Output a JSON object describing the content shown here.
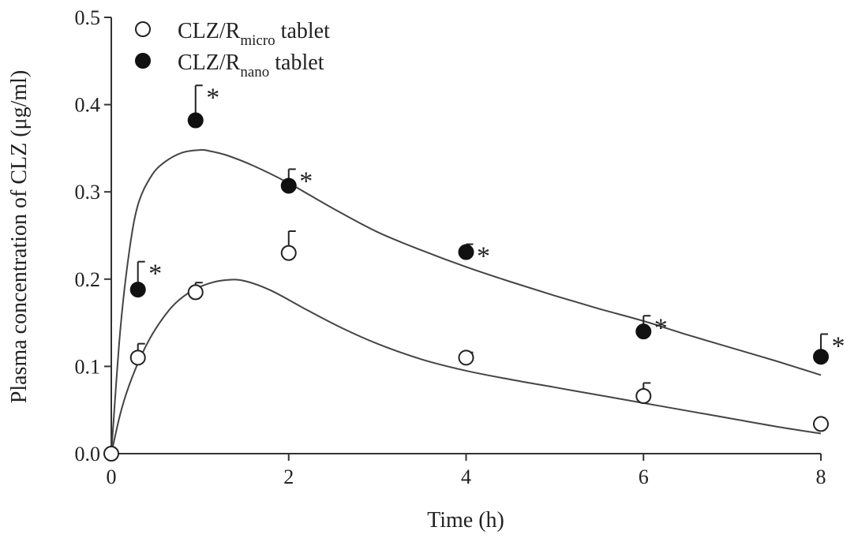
{
  "chart_data": {
    "type": "scatter",
    "xlabel": "Time (h)",
    "ylabel": "Plasma concentration of CLZ (μg/ml)",
    "xlim": [
      0,
      8
    ],
    "ylim": [
      0,
      0.5
    ],
    "x_ticks": [
      "0",
      "2",
      "4",
      "6",
      "8"
    ],
    "y_ticks": [
      "0.0",
      "0.1",
      "0.2",
      "0.3",
      "0.4",
      "0.5"
    ],
    "grid": false,
    "legend_position": "top-left",
    "annotation_symbol": "*",
    "series": [
      {
        "name": "CLZ/Rmicro tablet",
        "name_main": "CLZ/R",
        "name_sub": "micro",
        "name_suffix": " tablet",
        "marker": "open-circle",
        "color": "#222222",
        "x": [
          0,
          0.3,
          0.95,
          2,
          4,
          6,
          8
        ],
        "y": [
          0,
          0.11,
          0.185,
          0.23,
          0.11,
          0.066,
          0.034
        ],
        "err": [
          0,
          0.016,
          0.011,
          0.025,
          0.006,
          0.015,
          0.003
        ],
        "significant": [
          false,
          false,
          false,
          false,
          false,
          false,
          false
        ],
        "fit": {
          "x": [
            0,
            0.1,
            0.2,
            0.35,
            0.5,
            0.7,
            0.9,
            1.1,
            1.3,
            1.5,
            1.8,
            2.2,
            2.6,
            3.0,
            3.5,
            4.0,
            4.5,
            5.0,
            5.5,
            6.0,
            6.5,
            7.0,
            7.5,
            8.0
          ],
          "y": [
            0,
            0.045,
            0.078,
            0.115,
            0.143,
            0.17,
            0.186,
            0.195,
            0.199,
            0.198,
            0.187,
            0.165,
            0.144,
            0.126,
            0.108,
            0.095,
            0.085,
            0.076,
            0.067,
            0.058,
            0.049,
            0.04,
            0.031,
            0.023
          ]
        }
      },
      {
        "name": "CLZ/Rnano tablet",
        "name_main": "CLZ/R",
        "name_sub": "nano",
        "name_suffix": " tablet",
        "marker": "filled-circle",
        "color": "#111111",
        "x": [
          0.3,
          0.95,
          2,
          4,
          6,
          8
        ],
        "y": [
          0.188,
          0.382,
          0.307,
          0.231,
          0.14,
          0.111
        ],
        "err": [
          0.032,
          0.04,
          0.019,
          0.009,
          0.018,
          0.026
        ],
        "significant": [
          true,
          true,
          true,
          true,
          true,
          true
        ],
        "fit": {
          "x": [
            0,
            0.1,
            0.2,
            0.3,
            0.45,
            0.6,
            0.8,
            1.0,
            1.1,
            1.3,
            1.6,
            2.0,
            2.5,
            3.0,
            3.5,
            4.0,
            4.5,
            5.0,
            5.5,
            6.0,
            6.5,
            7.0,
            7.5,
            8.0
          ],
          "y": [
            0,
            0.14,
            0.23,
            0.285,
            0.318,
            0.334,
            0.345,
            0.348,
            0.347,
            0.342,
            0.33,
            0.31,
            0.281,
            0.254,
            0.233,
            0.214,
            0.197,
            0.181,
            0.166,
            0.152,
            0.136,
            0.121,
            0.106,
            0.09
          ]
        }
      }
    ]
  }
}
